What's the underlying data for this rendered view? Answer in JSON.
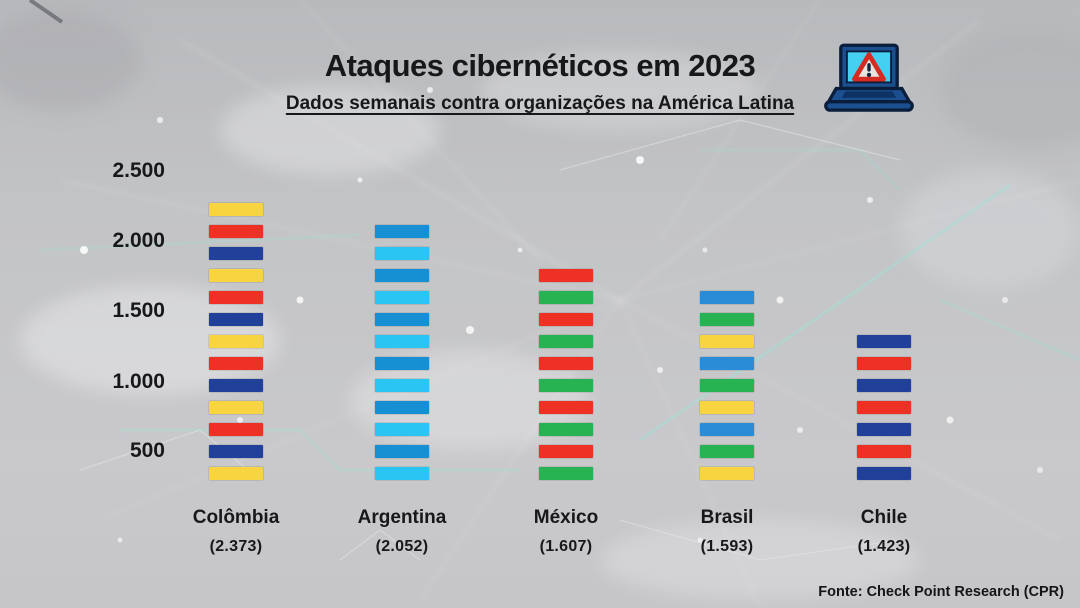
{
  "chart_data": {
    "type": "bar",
    "title": "Ataques cibernéticos em 2023",
    "subtitle": "Dados semanais contra organizações na América Latina",
    "source": "Fonte: Check Point Research (CPR)",
    "yticks": [
      "2.500",
      "2.000",
      "1.500",
      "1.000",
      "500"
    ],
    "ylim": [
      0,
      2500
    ],
    "grid": false,
    "legend": "none",
    "categories": [
      "Colômbia",
      "Argentina",
      "México",
      "Brasil",
      "Chile"
    ],
    "values": [
      2373,
      2052,
      1607,
      1593,
      1423
    ],
    "value_labels": [
      "(2.373)",
      "(2.052)",
      "(1.607)",
      "(1.593)",
      "(1.423)"
    ],
    "columns": [
      {
        "country": "Colômbia",
        "value": 2373,
        "value_label": "(2.373)",
        "segments": [
          "#F7D440",
          "#EE3124",
          "#21409A",
          "#F7D440",
          "#EE3124",
          "#21409A",
          "#F7D440",
          "#EE3124",
          "#21409A",
          "#F7D440",
          "#EE3124",
          "#21409A",
          "#F7D440"
        ]
      },
      {
        "country": "Argentina",
        "value": 2052,
        "value_label": "(2.052)",
        "segments": [
          "#1690D2",
          "#2BC5F4",
          "#1690D2",
          "#2BC5F4",
          "#1690D2",
          "#2BC5F4",
          "#1690D2",
          "#2BC5F4",
          "#1690D2",
          "#2BC5F4",
          "#1690D2",
          "#2BC5F4"
        ]
      },
      {
        "country": "México",
        "value": 1607,
        "value_label": "(1.607)",
        "segments": [
          "#EE3124",
          "#27B351",
          "#EE3124",
          "#27B351",
          "#EE3124",
          "#27B351",
          "#EE3124",
          "#27B351",
          "#EE3124",
          "#27B351"
        ]
      },
      {
        "country": "Brasil",
        "value": 1593,
        "value_label": "(1.593)",
        "segments": [
          "#2A8CD6",
          "#27B351",
          "#F7D440",
          "#2A8CD6",
          "#27B351",
          "#F7D440",
          "#2A8CD6",
          "#27B351",
          "#F7D440"
        ]
      },
      {
        "country": "Chile",
        "value": 1423,
        "value_label": "(1.423)",
        "segments": [
          "#21409A",
          "#EE3124",
          "#21409A",
          "#EE3124",
          "#21409A",
          "#EE3124",
          "#21409A"
        ]
      }
    ],
    "icon": "laptop-warning-icon",
    "colors": {
      "yellow": "#F7D440",
      "red": "#EE3124",
      "navy": "#21409A",
      "medium_blue": "#2A8CD6",
      "argentina_blue": "#1690D2",
      "cyan": "#2BC5F4",
      "green": "#27B351",
      "text": "#17181a"
    }
  }
}
